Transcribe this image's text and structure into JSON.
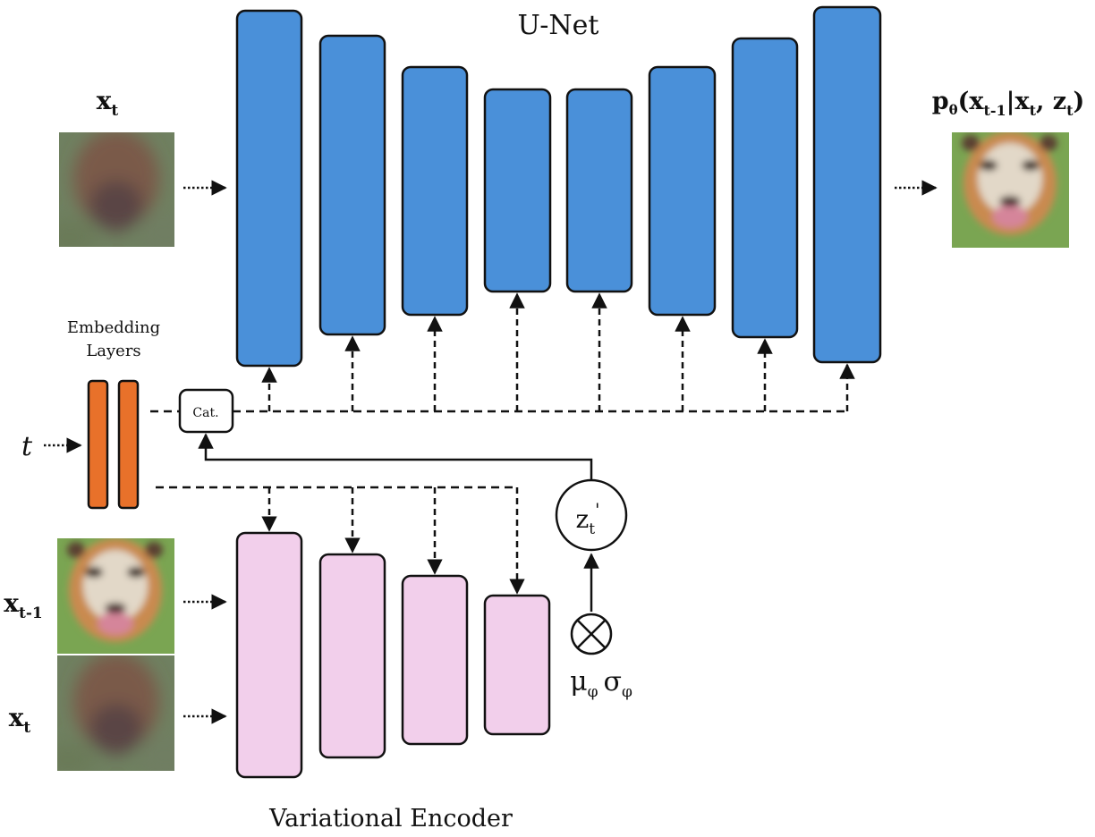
{
  "titles": {
    "unet": "U-Net",
    "encoder": "Variational Encoder",
    "embedding_line1": "Embedding",
    "embedding_line2": "Layers",
    "cat": "Cat."
  },
  "labels": {
    "xt_top_base": "x",
    "xt_top_sub": "t",
    "t_input": "t",
    "xt1_base": "x",
    "xt1_sub": "t-1",
    "xt_bottom_base": "x",
    "xt_bottom_sub": "t",
    "z_base": "z",
    "z_sub": "t",
    "z_prime": "'",
    "mu_base": "μ",
    "mu_sub": "φ",
    "sigma_base": "σ",
    "sigma_sub": "φ",
    "output": {
      "p": "p",
      "theta": "θ",
      "open": "(",
      "x": "x",
      "xsub": "t-1",
      "bar": "|",
      "x2": "x",
      "x2sub": "t",
      "comma": ", ",
      "z": "z",
      "zsub": "t",
      "close": ")"
    }
  },
  "colors": {
    "unet_fill": "#4a90d9",
    "encoder_fill": "#f2cfeb",
    "embedding_fill": "#e8712a",
    "stroke": "#111111"
  },
  "icons": {
    "image_blur": "blurred-tiger-image",
    "image_tiger": "tiger-image",
    "multiply": "circled-times-icon"
  }
}
